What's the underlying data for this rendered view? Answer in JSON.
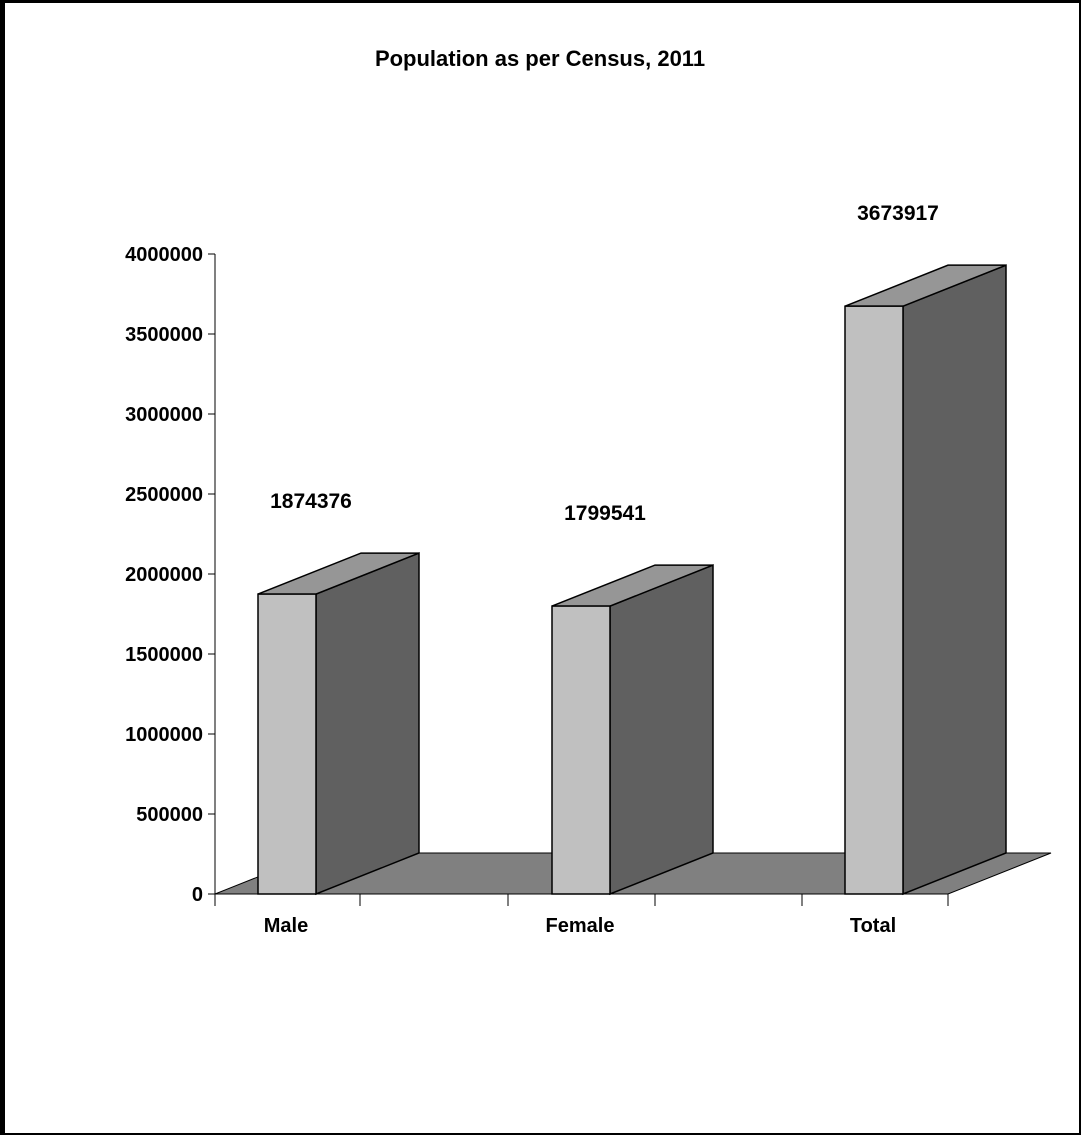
{
  "chart_data": {
    "type": "bar",
    "title": "Population as per Census, 2011",
    "categories": [
      "Male",
      "Female",
      "Total"
    ],
    "values": [
      1874376,
      1799541,
      3673917
    ],
    "data_labels": [
      "1874376",
      "1799541",
      "3673917"
    ],
    "ylim": [
      0,
      4000000
    ],
    "yticks": [
      0,
      500000,
      1000000,
      1500000,
      2000000,
      2500000,
      3000000,
      3500000,
      4000000
    ],
    "ytick_labels": [
      "0",
      "500000",
      "1000000",
      "1500000",
      "2000000",
      "2500000",
      "3000000",
      "3500000",
      "4000000"
    ],
    "grid": false,
    "style": "3d",
    "colors": {
      "bar_front": "#c0c0c0",
      "bar_top": "#969696",
      "bar_side": "#606060",
      "floor": "#808080",
      "outline": "#000000"
    }
  }
}
